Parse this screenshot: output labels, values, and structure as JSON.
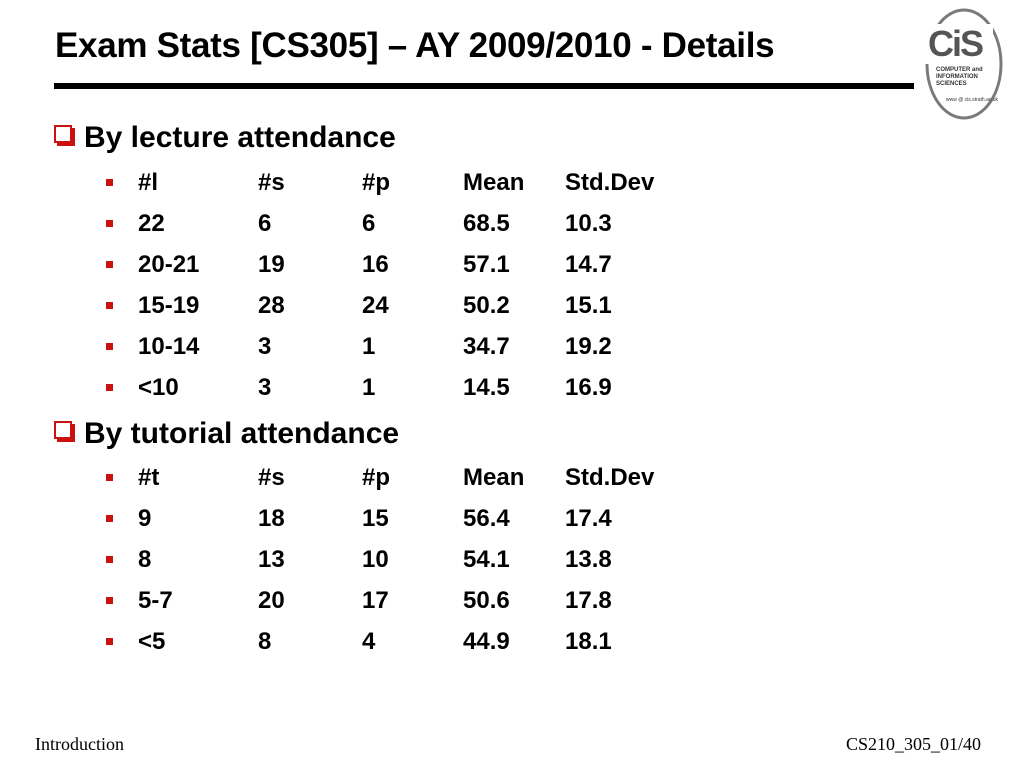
{
  "title": "Exam Stats [CS305] – AY 2009/2010 - Details",
  "logo": {
    "icon": "cis-logo-icon",
    "mark": "CiS",
    "line1": "COMPUTER and",
    "line2": "INFORMATION",
    "line3": "SCIENCES",
    "url": "www @ cis.strath.ac.uk"
  },
  "sections": [
    {
      "heading": "By lecture attendance",
      "rows": [
        [
          "#l",
          "#s",
          "#p",
          "Mean",
          "Std.Dev"
        ],
        [
          "22",
          "6",
          "6",
          "68.5",
          "10.3"
        ],
        [
          "20-21",
          "19",
          "16",
          "57.1",
          "14.7"
        ],
        [
          "15-19",
          "28",
          "24",
          "50.2",
          "15.1"
        ],
        [
          "10-14",
          "3",
          "1",
          "34.7",
          "19.2"
        ],
        [
          "<10",
          "3",
          "1",
          "14.5",
          "16.9"
        ]
      ]
    },
    {
      "heading": "By tutorial attendance",
      "rows": [
        [
          "#t",
          "#s",
          "#p",
          "Mean",
          "Std.Dev"
        ],
        [
          "9",
          "18",
          "15",
          "56.4",
          "17.4"
        ],
        [
          "8",
          "13",
          "10",
          "54.1",
          "13.8"
        ],
        [
          "5-7",
          "20",
          "17",
          "50.6",
          "17.8"
        ],
        [
          "<5",
          "8",
          "4",
          "44.9",
          "18.1"
        ]
      ]
    }
  ],
  "footer": {
    "left": "Introduction",
    "right": "CS210_305_01/40"
  },
  "colors": {
    "bullet": "#cc1111",
    "text": "#000000",
    "rule": "#000000"
  }
}
